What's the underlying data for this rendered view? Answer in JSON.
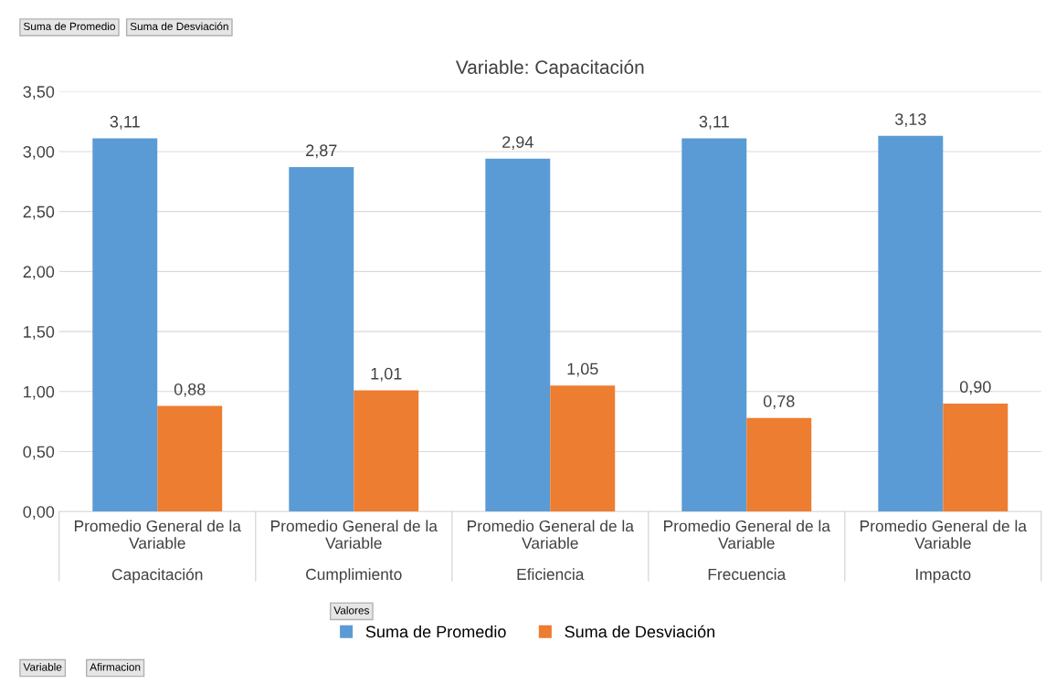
{
  "chart_data": {
    "type": "bar",
    "title": "Variable: Capacitación",
    "categories": [
      "Promedio General de la Variable\nCapacitación",
      "Promedio General de la Variable\nCumplimiento",
      "Promedio General de la Variable\nEficiencia",
      "Promedio General de la Variable\nFrecuencia",
      "Promedio General de la Variable\nImpacto"
    ],
    "series": [
      {
        "name": "Suma de Promedio",
        "color": "#5b9bd5",
        "values": [
          3.11,
          2.87,
          2.94,
          3.11,
          3.13
        ],
        "value_labels": [
          "3,11",
          "2,87",
          "2,94",
          "3,11",
          "3,13"
        ]
      },
      {
        "name": "Suma de Desviación",
        "color": "#ed7d31",
        "values": [
          0.88,
          1.01,
          1.05,
          0.78,
          0.9
        ],
        "value_labels": [
          "0,88",
          "1,01",
          "1,05",
          "0,78",
          "0,90"
        ]
      }
    ],
    "ylim": [
      0,
      3.5
    ],
    "yticks": [
      {
        "value": 0,
        "label": "0,00"
      },
      {
        "value": 0.5,
        "label": "0,50"
      },
      {
        "value": 1,
        "label": "1,00"
      },
      {
        "value": 1.5,
        "label": "1,50"
      },
      {
        "value": 2,
        "label": "2,00"
      },
      {
        "value": 2.5,
        "label": "2,50"
      },
      {
        "value": 3,
        "label": "3,00"
      },
      {
        "value": 3.5,
        "label": "3,50"
      }
    ],
    "grid": "y",
    "legend": "bottom",
    "annotations": [
      "Suma de Promedio",
      "Suma de Desviación",
      "Valores",
      "Variable",
      "Afirmacion"
    ]
  }
}
